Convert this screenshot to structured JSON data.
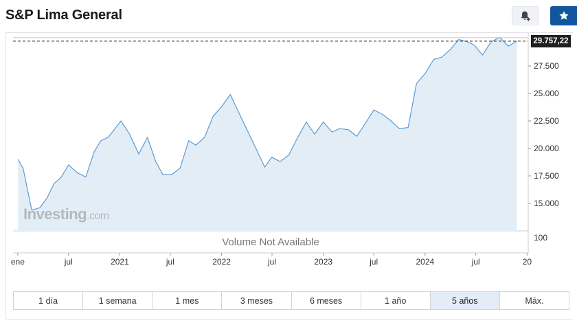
{
  "header": {
    "title": "S&P Lima General",
    "alert_icon": "bell-plus-icon",
    "watchlist_icon": "star-icon",
    "colors": {
      "watch_button": "#1256a0"
    }
  },
  "chart": {
    "current_price_label": "29.757,22",
    "volume_text": "Volume Not Available",
    "watermark": {
      "brand": "Investing",
      "suffix": ".com"
    },
    "volume_axis_label": "100"
  },
  "chart_data": {
    "type": "area",
    "series": [
      {
        "color": "#5b9bd5",
        "fill": "#e3edf6",
        "points": [
          [
            "2020-01-02",
            19000
          ],
          [
            "2020-01-20",
            18200
          ],
          [
            "2020-02-20",
            14400
          ],
          [
            "2020-03-20",
            14600
          ],
          [
            "2020-04-15",
            15500
          ],
          [
            "2020-05-10",
            16800
          ],
          [
            "2020-06-05",
            17400
          ],
          [
            "2020-07-01",
            18500
          ],
          [
            "2020-08-01",
            17800
          ],
          [
            "2020-09-01",
            17400
          ],
          [
            "2020-10-01",
            19700
          ],
          [
            "2020-10-25",
            20700
          ],
          [
            "2020-11-20",
            21000
          ],
          [
            "2021-01-05",
            22500
          ],
          [
            "2021-02-05",
            21300
          ],
          [
            "2021-03-10",
            19500
          ],
          [
            "2021-04-10",
            21000
          ],
          [
            "2021-05-10",
            18800
          ],
          [
            "2021-06-05",
            17600
          ],
          [
            "2021-07-05",
            17600
          ],
          [
            "2021-08-05",
            18200
          ],
          [
            "2021-09-05",
            20700
          ],
          [
            "2021-10-01",
            20300
          ],
          [
            "2021-11-01",
            21000
          ],
          [
            "2021-12-01",
            22900
          ],
          [
            "2022-01-01",
            23800
          ],
          [
            "2022-02-01",
            24900
          ],
          [
            "2022-06-05",
            18300
          ],
          [
            "2022-06-30",
            19200
          ],
          [
            "2022-07-30",
            18800
          ],
          [
            "2022-08-30",
            19400
          ],
          [
            "2022-10-01",
            21000
          ],
          [
            "2022-11-01",
            22400
          ],
          [
            "2022-12-01",
            21300
          ],
          [
            "2023-01-01",
            22400
          ],
          [
            "2023-02-01",
            21500
          ],
          [
            "2023-03-01",
            21800
          ],
          [
            "2023-04-01",
            21700
          ],
          [
            "2023-05-01",
            21100
          ],
          [
            "2023-06-01",
            22300
          ],
          [
            "2023-07-01",
            23500
          ],
          [
            "2023-08-01",
            23100
          ],
          [
            "2023-09-01",
            22500
          ],
          [
            "2023-10-01",
            21800
          ],
          [
            "2023-11-01",
            21900
          ],
          [
            "2023-12-01",
            25900
          ],
          [
            "2024-01-01",
            26800
          ],
          [
            "2024-02-01",
            28100
          ],
          [
            "2024-03-01",
            28300
          ],
          [
            "2024-04-01",
            29000
          ],
          [
            "2024-05-01",
            29900
          ],
          [
            "2024-06-01",
            29700
          ],
          [
            "2024-06-25",
            29400
          ],
          [
            "2024-07-25",
            28500
          ],
          [
            "2024-08-25",
            29700
          ],
          [
            "2024-09-25",
            30100
          ],
          [
            "2024-10-25",
            29300
          ],
          [
            "2024-11-25",
            29750
          ]
        ]
      }
    ],
    "y_ticks": [
      "15.000",
      "17.500",
      "20.000",
      "22.500",
      "25.000",
      "27.500"
    ],
    "y_tick_values": [
      15000,
      17500,
      20000,
      22500,
      25000,
      27500
    ],
    "ylim": [
      12500,
      30500
    ],
    "x_ticks": [
      {
        "label": "ene",
        "date": "2020-01-01"
      },
      {
        "label": "jul",
        "date": "2020-07-01"
      },
      {
        "label": "2021",
        "date": "2021-01-01"
      },
      {
        "label": "jul",
        "date": "2021-07-01"
      },
      {
        "label": "2022",
        "date": "2022-01-01"
      },
      {
        "label": "jul",
        "date": "2022-07-01"
      },
      {
        "label": "2023",
        "date": "2023-01-01"
      },
      {
        "label": "jul",
        "date": "2023-07-01"
      },
      {
        "label": "2024",
        "date": "2024-01-01"
      },
      {
        "label": "jul",
        "date": "2024-07-01"
      },
      {
        "label": "20",
        "date": "2025-01-01"
      }
    ],
    "current_price": 29757.22,
    "grid": true
  },
  "ranges": [
    {
      "label": "1 día",
      "active": false
    },
    {
      "label": "1 semana",
      "active": false
    },
    {
      "label": "1 mes",
      "active": false
    },
    {
      "label": "3 meses",
      "active": false
    },
    {
      "label": "6 meses",
      "active": false
    },
    {
      "label": "1 año",
      "active": false
    },
    {
      "label": "5 años",
      "active": true
    },
    {
      "label": "Máx.",
      "active": false
    }
  ]
}
